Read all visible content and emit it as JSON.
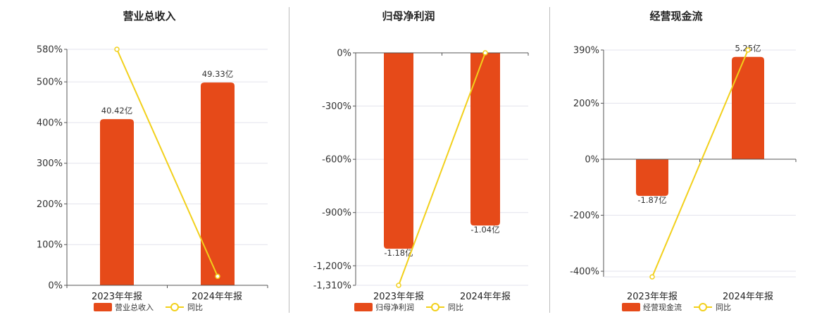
{
  "colors": {
    "bar": "#E64A19",
    "line": "#F2D01B",
    "grid": "#e3e3ec",
    "axis": "#555555"
  },
  "chart_data": [
    {
      "type": "bar",
      "title": "营业总收入",
      "categories": [
        "2023年年报",
        "2024年年报"
      ],
      "series": [
        {
          "name": "营业总收入",
          "type": "bar",
          "values": [
            40.42,
            49.33
          ],
          "labels": [
            "40.42亿",
            "49.33亿"
          ]
        },
        {
          "name": "同比",
          "type": "line",
          "values": [
            580,
            22
          ]
        }
      ],
      "yticks": [
        0,
        100,
        200,
        300,
        400,
        500,
        580
      ],
      "ytick_labels": [
        "0%",
        "100%",
        "200%",
        "300%",
        "400%",
        "500%",
        "580%"
      ],
      "ylim": [
        0,
        580
      ],
      "bar_axis_max": 57.4,
      "legend": "bottom"
    },
    {
      "type": "bar",
      "title": "归母净利润",
      "categories": [
        "2023年年报",
        "2024年年报"
      ],
      "series": [
        {
          "name": "归母净利润",
          "type": "bar",
          "values": [
            -1.18,
            -1.04
          ],
          "labels": [
            "-1.18亿",
            "-1.04亿"
          ]
        },
        {
          "name": "同比",
          "type": "line",
          "values": [
            -1310,
            0
          ]
        }
      ],
      "yticks": [
        0,
        -300,
        -600,
        -900,
        -1200,
        -1310
      ],
      "ytick_labels": [
        "0%",
        "-300%",
        "-600%",
        "-900%",
        "-1,200%",
        "-1,310%"
      ],
      "ylim": [
        -1310,
        0
      ],
      "bar_axis_min": -1.4,
      "legend": "bottom"
    },
    {
      "type": "bar",
      "title": "经营现金流",
      "categories": [
        "2023年年报",
        "2024年年报"
      ],
      "series": [
        {
          "name": "经营现金流",
          "type": "bar",
          "values": [
            -1.87,
            5.25
          ],
          "labels": [
            "-1.87亿",
            "5.25亿"
          ]
        },
        {
          "name": "同比",
          "type": "line",
          "values": [
            -420,
            390
          ]
        }
      ],
      "yticks": [
        390,
        200,
        0,
        -200,
        -400
      ],
      "ytick_labels": [
        "390%",
        "200%",
        "0%",
        "-200%",
        "-400%"
      ],
      "ylim": [
        -420,
        390
      ],
      "bar_axis_range": [
        -6.0,
        5.6
      ],
      "legend": "bottom"
    }
  ]
}
